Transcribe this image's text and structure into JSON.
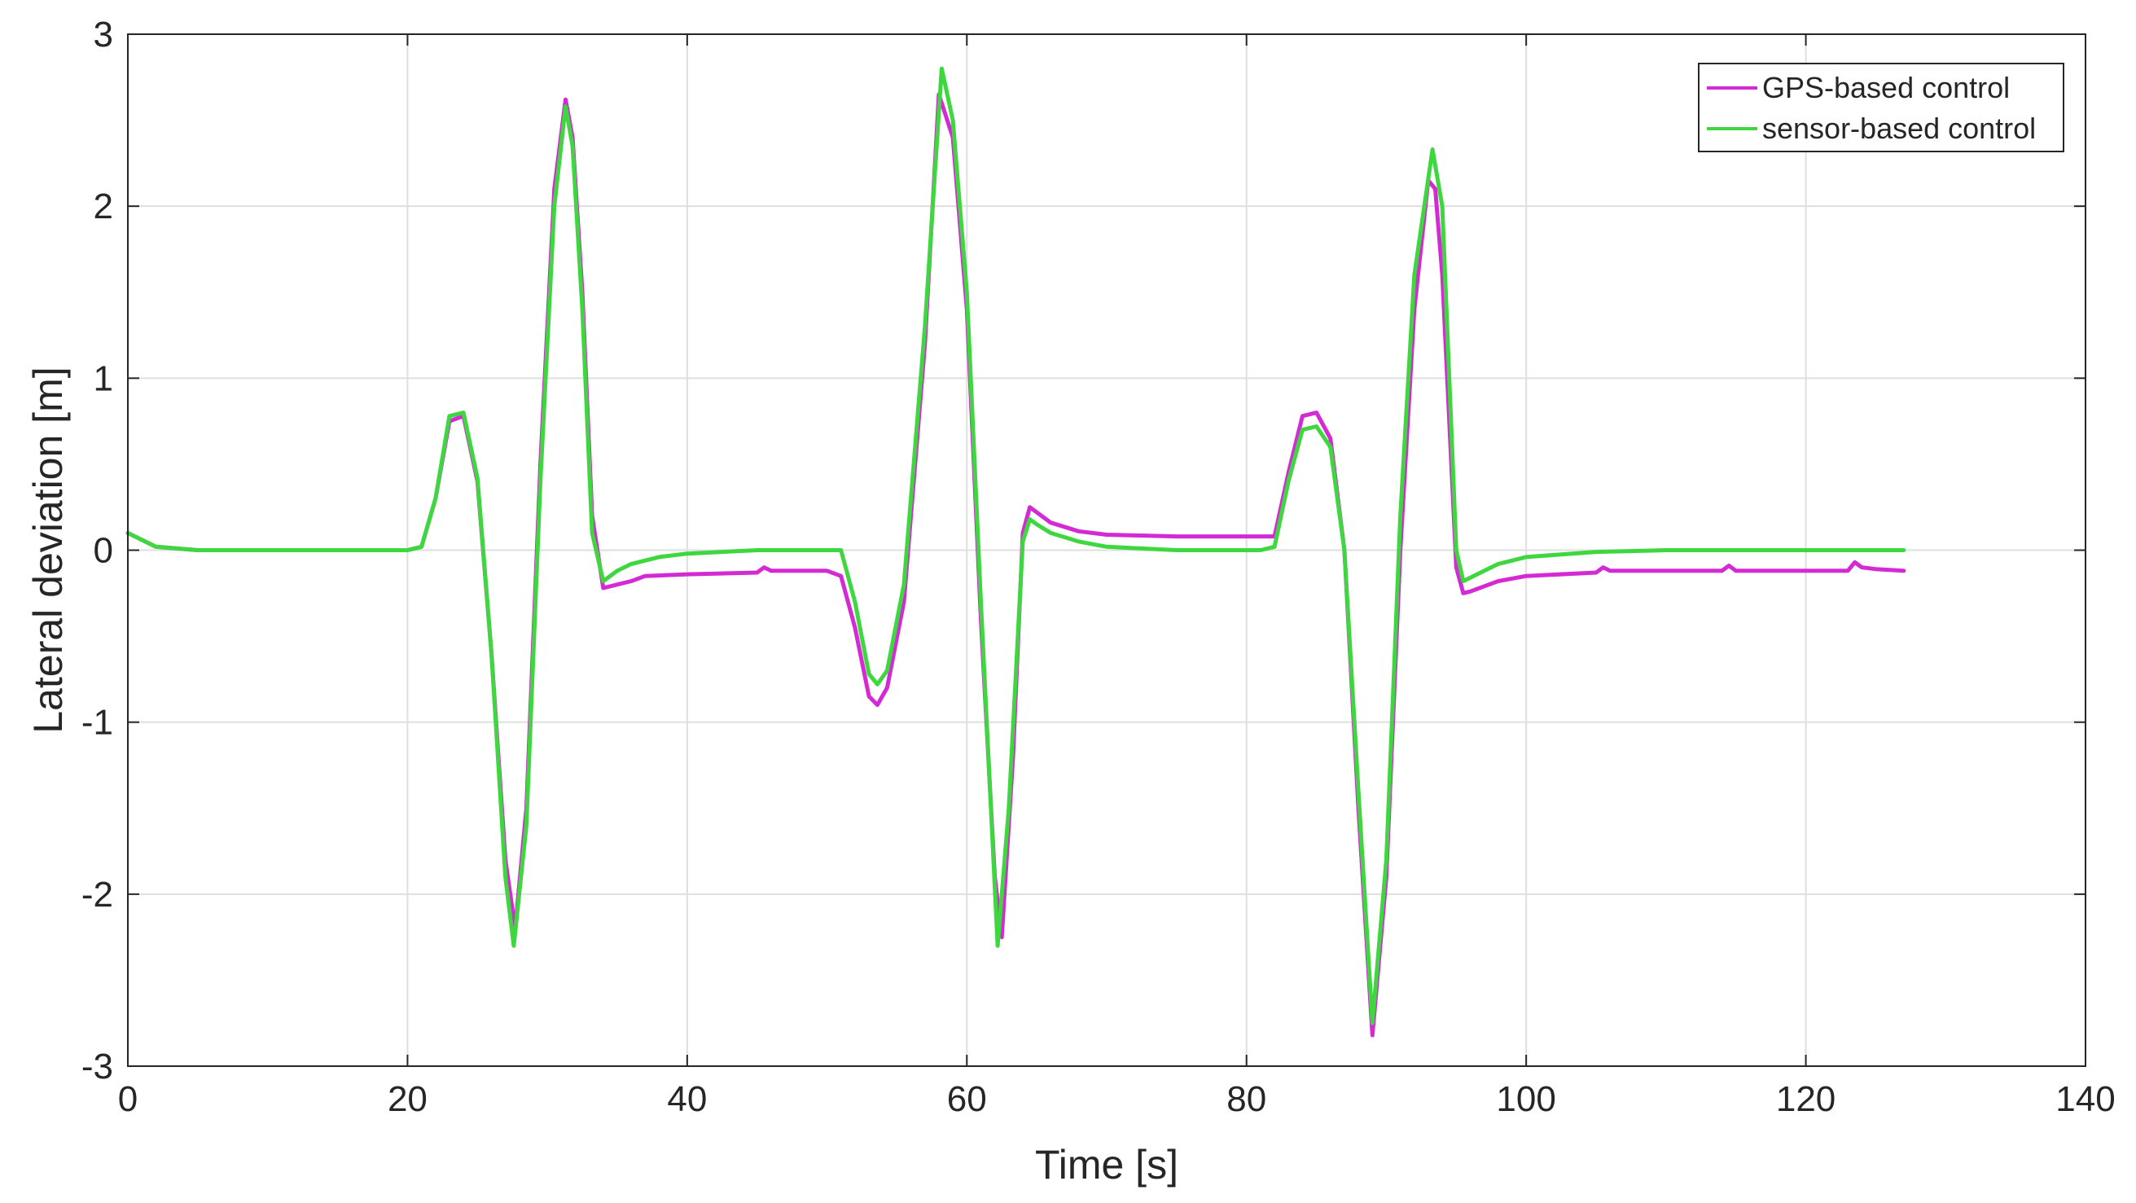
{
  "chart_data": {
    "type": "line",
    "xlabel": "Time [s]",
    "ylabel": "Lateral deviation [m]",
    "xlim": [
      0,
      140
    ],
    "ylim": [
      -3,
      3
    ],
    "xticks": [
      0,
      20,
      40,
      60,
      80,
      100,
      120,
      140
    ],
    "yticks": [
      -3,
      -2,
      -1,
      0,
      1,
      2,
      3
    ],
    "grid": true,
    "legend_position": "top-right",
    "series": [
      {
        "name": "GPS-based control",
        "color": "#d42ad4",
        "x": [
          0,
          2,
          5,
          10,
          15,
          20,
          21,
          22,
          23,
          24,
          25,
          26,
          27,
          27.7,
          28.5,
          29.5,
          30.5,
          31.3,
          31.8,
          32.5,
          33.2,
          34,
          35,
          36,
          37,
          40,
          45,
          45.5,
          46,
          50,
          51,
          52,
          53,
          53.6,
          54.3,
          55.5,
          57,
          58,
          59,
          60,
          61,
          62,
          62.5,
          63.3,
          64,
          64.5,
          65,
          66,
          68,
          70,
          75,
          80,
          82,
          83,
          84,
          85,
          86,
          87,
          88,
          89,
          90,
          91,
          92,
          93,
          93.5,
          94,
          95,
          95.5,
          96,
          98,
          100,
          105,
          105.5,
          106,
          114,
          114.5,
          115,
          123,
          123.5,
          124,
          125,
          127
        ],
        "y": [
          0.1,
          0.02,
          0.0,
          0.0,
          0.0,
          0.0,
          0.02,
          0.3,
          0.75,
          0.78,
          0.4,
          -0.6,
          -1.8,
          -2.2,
          -1.5,
          0.5,
          2.1,
          2.62,
          2.4,
          1.5,
          0.2,
          -0.22,
          -0.2,
          -0.18,
          -0.15,
          -0.14,
          -0.13,
          -0.1,
          -0.12,
          -0.12,
          -0.15,
          -0.45,
          -0.85,
          -0.9,
          -0.8,
          -0.3,
          1.2,
          2.65,
          2.4,
          1.4,
          -0.4,
          -1.9,
          -2.25,
          -1.2,
          0.1,
          0.25,
          0.22,
          0.16,
          0.11,
          0.09,
          0.08,
          0.08,
          0.08,
          0.45,
          0.78,
          0.8,
          0.65,
          0.0,
          -1.5,
          -2.82,
          -1.9,
          0.0,
          1.4,
          2.15,
          2.1,
          1.6,
          -0.1,
          -0.25,
          -0.24,
          -0.18,
          -0.15,
          -0.13,
          -0.1,
          -0.12,
          -0.12,
          -0.09,
          -0.12,
          -0.12,
          -0.07,
          -0.1,
          -0.11,
          -0.12
        ]
      },
      {
        "name": "sensor-based control",
        "color": "#3fd73f",
        "x": [
          0,
          2,
          5,
          10,
          15,
          20,
          21,
          22,
          23,
          24,
          25,
          26,
          27,
          27.6,
          28.5,
          29.5,
          30.5,
          31.3,
          31.8,
          32.5,
          33.2,
          34,
          35,
          36,
          38,
          40,
          45,
          50,
          51,
          52,
          53,
          53.6,
          54.3,
          55.5,
          57,
          58.2,
          59,
          60,
          61,
          62.2,
          63,
          64,
          64.5,
          65,
          66,
          68,
          70,
          75,
          81,
          82,
          83,
          84,
          85,
          86,
          87,
          88,
          89,
          90,
          91,
          92,
          93.3,
          94,
          95,
          95.5,
          96,
          98,
          100,
          105,
          110,
          120,
          127
        ],
        "y": [
          0.1,
          0.02,
          0.0,
          0.0,
          0.0,
          0.0,
          0.02,
          0.3,
          0.78,
          0.8,
          0.42,
          -0.6,
          -1.9,
          -2.3,
          -1.6,
          0.4,
          2.0,
          2.58,
          2.35,
          1.4,
          0.1,
          -0.18,
          -0.12,
          -0.08,
          -0.04,
          -0.02,
          0.0,
          0.0,
          0.0,
          -0.3,
          -0.72,
          -0.78,
          -0.7,
          -0.2,
          1.3,
          2.8,
          2.5,
          1.5,
          -0.3,
          -2.3,
          -1.5,
          0.05,
          0.18,
          0.15,
          0.1,
          0.05,
          0.02,
          0.0,
          0.0,
          0.02,
          0.4,
          0.7,
          0.72,
          0.6,
          0.0,
          -1.4,
          -2.75,
          -1.8,
          0.2,
          1.6,
          2.33,
          2.0,
          0.0,
          -0.18,
          -0.16,
          -0.08,
          -0.04,
          -0.01,
          0.0,
          0.0,
          0.0
        ]
      }
    ]
  }
}
